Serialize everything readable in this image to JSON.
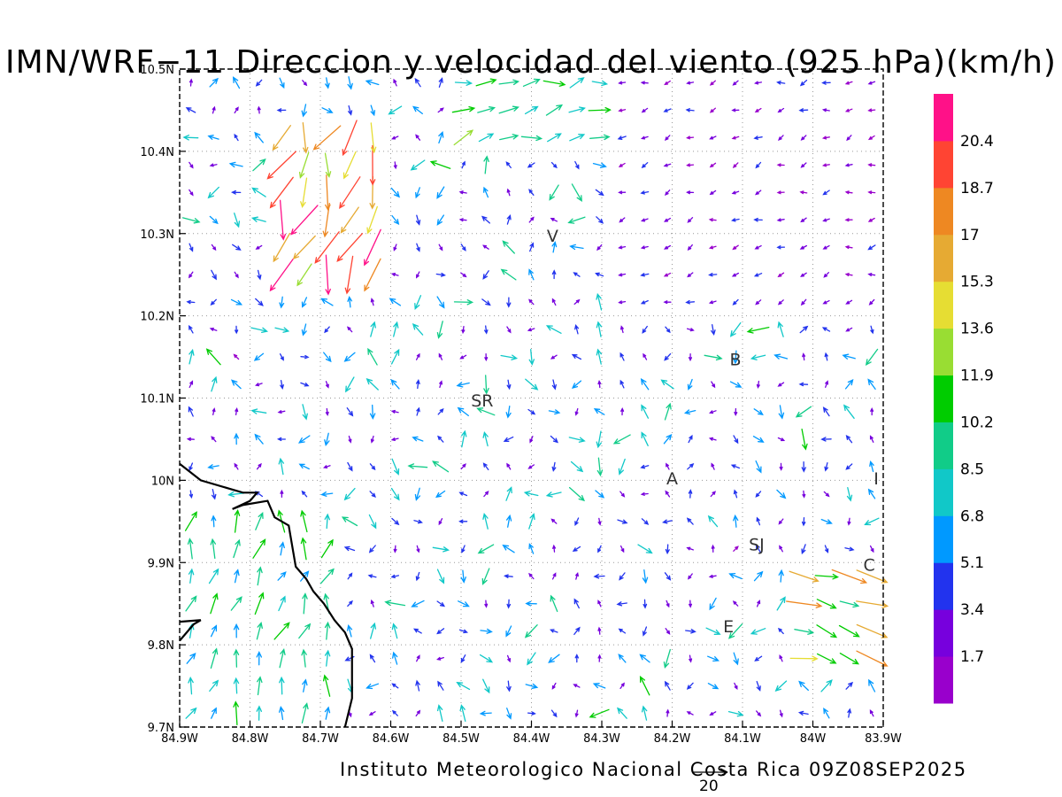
{
  "title": "IMN/WRF−11 Direccion y velocidad del viento (925 hPa)(km/h)",
  "footer": "Instituto Meteorologico Nacional Costa Rica 09Z08SEP2025",
  "chart_data": {
    "type": "vector-field",
    "units": "km/h",
    "pressure_level": "925 hPa",
    "valid_time": "09Z08SEP2025",
    "x_range": [
      -84.9,
      -83.9
    ],
    "y_range": [
      9.7,
      10.5
    ],
    "x_ticks": [
      {
        "v": -84.9,
        "label": "84.9W"
      },
      {
        "v": -84.8,
        "label": "84.8W"
      },
      {
        "v": -84.7,
        "label": "84.7W"
      },
      {
        "v": -84.6,
        "label": "84.6W"
      },
      {
        "v": -84.5,
        "label": "84.5W"
      },
      {
        "v": -84.4,
        "label": "84.4W"
      },
      {
        "v": -84.3,
        "label": "84.3W"
      },
      {
        "v": -84.2,
        "label": "84.2W"
      },
      {
        "v": -84.1,
        "label": "84.1W"
      },
      {
        "v": -84.0,
        "label": "84W"
      },
      {
        "v": -83.9,
        "label": "83.9W"
      }
    ],
    "y_ticks": [
      {
        "v": 9.7,
        "label": "9.7N"
      },
      {
        "v": 9.8,
        "label": "9.8N"
      },
      {
        "v": 9.9,
        "label": "9.9N"
      },
      {
        "v": 10.0,
        "label": "10N"
      },
      {
        "v": 10.1,
        "label": "10.1N"
      },
      {
        "v": 10.2,
        "label": "10.2N"
      },
      {
        "v": 10.3,
        "label": "10.3N"
      },
      {
        "v": 10.4,
        "label": "10.4N"
      },
      {
        "v": 10.5,
        "label": "10.5N"
      }
    ],
    "grid": true,
    "colorbar": {
      "labels": [
        "1.7",
        "3.4",
        "5.1",
        "6.8",
        "8.5",
        "10.2",
        "11.9",
        "13.6",
        "15.3",
        "17",
        "18.7",
        "20.4"
      ],
      "colors": [
        "#9900cc",
        "#7700dd",
        "#2233ee",
        "#0099ff",
        "#11c8c8",
        "#11cc88",
        "#00cc00",
        "#99dd33",
        "#e6dd33",
        "#e6aa33",
        "#ee8822",
        "#ff4433",
        "#ff1188"
      ]
    },
    "reference_vector": {
      "value": 20,
      "label": "20"
    },
    "cities": [
      {
        "label": "V",
        "lon": -84.37,
        "lat": 10.29
      },
      {
        "label": "SR",
        "lon": -84.47,
        "lat": 10.09
      },
      {
        "label": "B",
        "lon": -84.11,
        "lat": 10.14
      },
      {
        "label": "A",
        "lon": -84.2,
        "lat": 9.995
      },
      {
        "label": "I",
        "lon": -83.91,
        "lat": 9.995
      },
      {
        "label": "SJ",
        "lon": -84.08,
        "lat": 9.915
      },
      {
        "label": "C",
        "lon": -83.92,
        "lat": 9.89
      },
      {
        "label": "E",
        "lon": -84.12,
        "lat": 9.815
      }
    ],
    "coastline": [
      [
        -84.9,
        10.02
      ],
      [
        -84.87,
        10.0
      ],
      [
        -84.83,
        9.99
      ],
      [
        -84.81,
        9.985
      ],
      [
        -84.79,
        9.985
      ],
      [
        -84.8,
        9.975
      ],
      [
        -84.825,
        9.965
      ],
      [
        -84.81,
        9.97
      ],
      [
        -84.775,
        9.975
      ],
      [
        -84.765,
        9.955
      ],
      [
        -84.745,
        9.945
      ],
      [
        -84.735,
        9.895
      ],
      [
        -84.72,
        9.88
      ],
      [
        -84.71,
        9.865
      ],
      [
        -84.695,
        9.85
      ],
      [
        -84.68,
        9.83
      ],
      [
        -84.665,
        9.815
      ],
      [
        -84.655,
        9.795
      ],
      [
        -84.655,
        9.735
      ],
      [
        -84.665,
        9.7
      ]
    ],
    "coastline_west": [
      [
        -84.9,
        9.805
      ],
      [
        -84.88,
        9.825
      ],
      [
        -84.87,
        9.83
      ],
      [
        -84.9,
        9.828
      ]
    ],
    "wind_regions": [
      {
        "name": "west-coast",
        "lon": [
          -84.9,
          -84.66
        ],
        "lat": [
          9.7,
          9.97
        ],
        "dir_to_deg": 75,
        "speed_kmh": [
          5,
          12
        ]
      },
      {
        "name": "northwest-gust",
        "lon": [
          -84.78,
          -84.6
        ],
        "lat": [
          10.25,
          10.42
        ],
        "dir_to_deg": 250,
        "speed_kmh": [
          12,
          21
        ]
      },
      {
        "name": "north-east-flow",
        "lon": [
          -84.5,
          -84.3
        ],
        "lat": [
          10.4,
          10.5
        ],
        "dir_to_deg": 15,
        "speed_kmh": [
          7,
          12
        ]
      },
      {
        "name": "cartago",
        "lon": [
          -84.02,
          -83.9
        ],
        "lat": [
          9.78,
          9.9
        ],
        "dir_to_deg": -20,
        "speed_kmh": [
          9,
          19
        ]
      },
      {
        "name": "northeast-calm",
        "lon": [
          -84.3,
          -83.9
        ],
        "lat": [
          10.2,
          10.5
        ],
        "dir_to_deg": 200,
        "speed_kmh": [
          1,
          4
        ]
      }
    ]
  }
}
